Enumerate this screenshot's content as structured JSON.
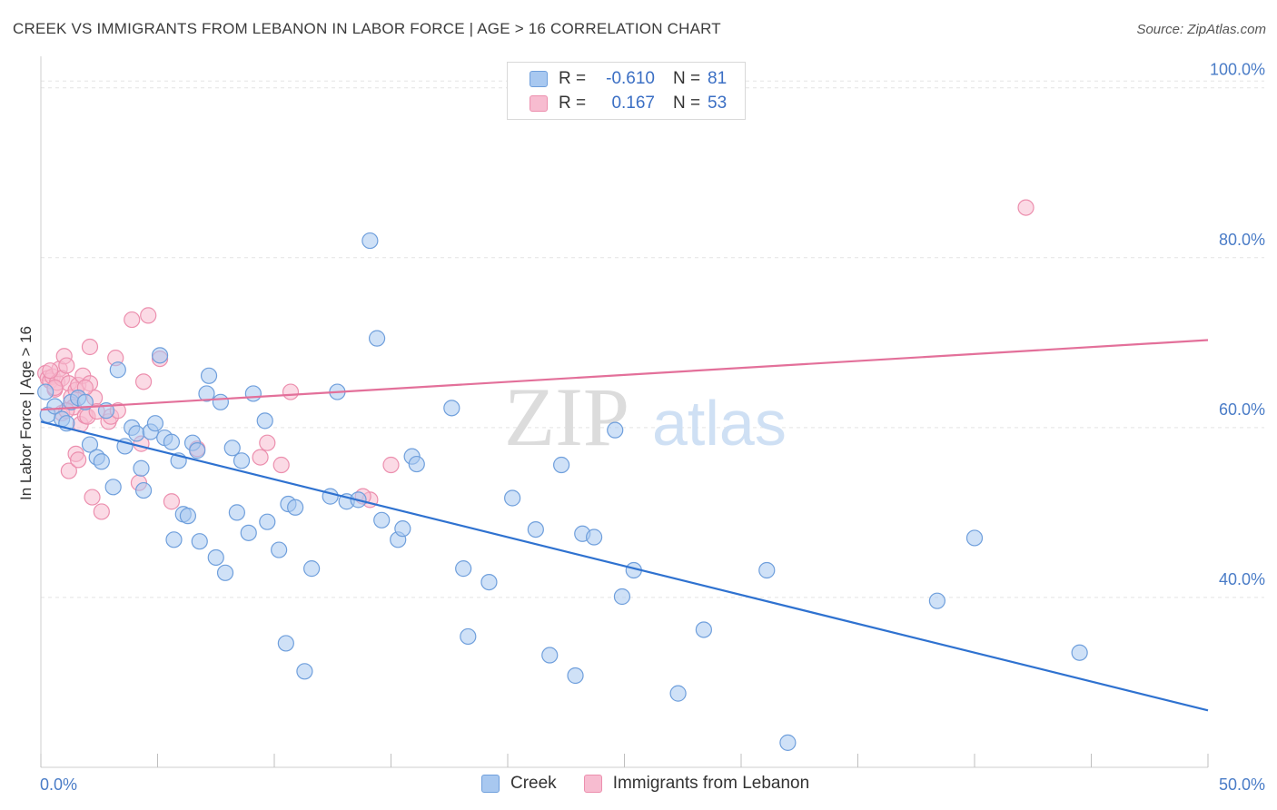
{
  "header": {
    "title": "CREEK VS IMMIGRANTS FROM LEBANON IN LABOR FORCE | AGE > 16 CORRELATION CHART",
    "source": "Source: ZipAtlas.com"
  },
  "watermark": {
    "zip": "ZIP",
    "atlas": "atlas"
  },
  "legend": {
    "rows": [
      {
        "r_label": "R =",
        "r_value": "-0.610",
        "n_label": "N =",
        "n_value": "81"
      },
      {
        "r_label": "R =",
        "r_value": "0.167",
        "n_label": "N =",
        "n_value": "53"
      }
    ]
  },
  "bottom_legend": {
    "creek": "Creek",
    "lebanon": "Immigrants from Lebanon"
  },
  "axes": {
    "ylabel": "In Labor Force | Age > 16",
    "x_min_label": "0.0%",
    "x_max_label": "50.0%",
    "y_ticks": [
      "100.0%",
      "80.0%",
      "60.0%",
      "40.0%"
    ]
  },
  "colors": {
    "creek_fill": "#a8c8f0",
    "creek_stroke": "#6f9fdc",
    "creek_line": "#2f72d0",
    "lebanon_fill": "#f7bcd0",
    "lebanon_stroke": "#ec8fae",
    "lebanon_line": "#e3709a"
  },
  "chart_data": {
    "type": "scatter",
    "xlabel": "",
    "ylabel": "In Labor Force | Age > 16",
    "xlim": [
      0,
      50
    ],
    "ylim": [
      20,
      102
    ],
    "y_ticks": [
      40,
      60,
      80,
      100
    ],
    "grid": true,
    "series": [
      {
        "name": "Creek",
        "trend": {
          "x": [
            0,
            50
          ],
          "y": [
            60.7,
            26.7
          ]
        },
        "points": [
          [
            0.3,
            61.5
          ],
          [
            0.6,
            62.5
          ],
          [
            0.9,
            61
          ],
          [
            1.1,
            60.5
          ],
          [
            1.3,
            63
          ],
          [
            1.6,
            63.5
          ],
          [
            1.9,
            63
          ],
          [
            2.1,
            58
          ],
          [
            2.4,
            56.5
          ],
          [
            2.6,
            56
          ],
          [
            2.8,
            62
          ],
          [
            3.1,
            53
          ],
          [
            3.3,
            66.8
          ],
          [
            3.6,
            57.8
          ],
          [
            3.9,
            60
          ],
          [
            4.1,
            59.3
          ],
          [
            4.3,
            55.2
          ],
          [
            4.4,
            52.6
          ],
          [
            4.7,
            59.5
          ],
          [
            4.9,
            60.5
          ],
          [
            5.1,
            68.5
          ],
          [
            5.3,
            58.8
          ],
          [
            5.6,
            58.3
          ],
          [
            5.7,
            46.8
          ],
          [
            6.1,
            49.8
          ],
          [
            6.3,
            49.6
          ],
          [
            6.5,
            58.2
          ],
          [
            6.7,
            57.3
          ],
          [
            6.8,
            46.6
          ],
          [
            7.1,
            64
          ],
          [
            7.2,
            66.1
          ],
          [
            7.5,
            44.7
          ],
          [
            7.7,
            63
          ],
          [
            7.9,
            42.9
          ],
          [
            8.2,
            57.6
          ],
          [
            8.4,
            50
          ],
          [
            8.6,
            56.1
          ],
          [
            8.9,
            47.6
          ],
          [
            9.1,
            64
          ],
          [
            9.6,
            60.8
          ],
          [
            9.7,
            48.9
          ],
          [
            10.2,
            45.6
          ],
          [
            10.5,
            34.6
          ],
          [
            10.6,
            51
          ],
          [
            10.9,
            50.6
          ],
          [
            11.3,
            31.3
          ],
          [
            11.6,
            43.4
          ],
          [
            12.4,
            51.9
          ],
          [
            12.7,
            64.2
          ],
          [
            13.1,
            51.3
          ],
          [
            13.6,
            51.5
          ],
          [
            14.1,
            82
          ],
          [
            14.4,
            70.5
          ],
          [
            14.6,
            49.1
          ],
          [
            15.3,
            46.8
          ],
          [
            15.5,
            48.1
          ],
          [
            15.9,
            56.6
          ],
          [
            16.1,
            55.7
          ],
          [
            17.6,
            62.3
          ],
          [
            18.1,
            43.4
          ],
          [
            18.3,
            35.4
          ],
          [
            19.2,
            41.8
          ],
          [
            20.2,
            51.7
          ],
          [
            21.2,
            48
          ],
          [
            21.8,
            33.2
          ],
          [
            22.3,
            55.6
          ],
          [
            22.9,
            30.8
          ],
          [
            23.2,
            47.5
          ],
          [
            23.7,
            47.1
          ],
          [
            24.6,
            59.7
          ],
          [
            24.9,
            40.1
          ],
          [
            25.4,
            43.2
          ],
          [
            27.3,
            28.7
          ],
          [
            28.4,
            36.2
          ],
          [
            31.1,
            43.2
          ],
          [
            32,
            22.9
          ],
          [
            38.4,
            39.6
          ],
          [
            40,
            47
          ],
          [
            44.5,
            33.5
          ],
          [
            0.2,
            64.2
          ],
          [
            5.9,
            56.1
          ]
        ]
      },
      {
        "name": "Immigrants from Lebanon",
        "trend": {
          "x": [
            0,
            50
          ],
          "y": [
            62.1,
            70.3
          ]
        },
        "points": [
          [
            0.2,
            66.4
          ],
          [
            0.3,
            65.8
          ],
          [
            0.4,
            65.5
          ],
          [
            0.5,
            66
          ],
          [
            0.6,
            64.5
          ],
          [
            0.7,
            65.3
          ],
          [
            0.8,
            66.9
          ],
          [
            0.9,
            65.8
          ],
          [
            1.0,
            68.4
          ],
          [
            1.1,
            67.3
          ],
          [
            1.2,
            65.2
          ],
          [
            1.3,
            63.6
          ],
          [
            1.4,
            62.4
          ],
          [
            1.5,
            64.4
          ],
          [
            1.6,
            65
          ],
          [
            1.7,
            60.4
          ],
          [
            1.8,
            66.1
          ],
          [
            1.9,
            61.4
          ],
          [
            2.0,
            61.3
          ],
          [
            2.1,
            65.2
          ],
          [
            2.2,
            51.8
          ],
          [
            2.6,
            50.1
          ],
          [
            2.9,
            60.7
          ],
          [
            3.0,
            61.3
          ],
          [
            3.2,
            68.2
          ],
          [
            3.3,
            62
          ],
          [
            3.9,
            72.7
          ],
          [
            4.2,
            53.5
          ],
          [
            4.3,
            58.1
          ],
          [
            4.4,
            65.4
          ],
          [
            4.6,
            73.2
          ],
          [
            5.1,
            68.1
          ],
          [
            5.6,
            51.3
          ],
          [
            6.7,
            57.5
          ],
          [
            9.4,
            56.5
          ],
          [
            9.7,
            58.2
          ],
          [
            10.3,
            55.6
          ],
          [
            10.7,
            64.2
          ],
          [
            14.1,
            51.5
          ],
          [
            15,
            55.6
          ],
          [
            42.2,
            85.9
          ],
          [
            1.2,
            54.9
          ],
          [
            1.5,
            56.9
          ],
          [
            1.6,
            56.2
          ],
          [
            2.1,
            69.5
          ],
          [
            2.3,
            63.5
          ],
          [
            0.9,
            61.7
          ],
          [
            0.6,
            64.7
          ],
          [
            0.4,
            66.7
          ],
          [
            1.9,
            64.7
          ],
          [
            1.1,
            62
          ],
          [
            2.4,
            61.9
          ],
          [
            13.8,
            51.9
          ]
        ]
      }
    ]
  }
}
